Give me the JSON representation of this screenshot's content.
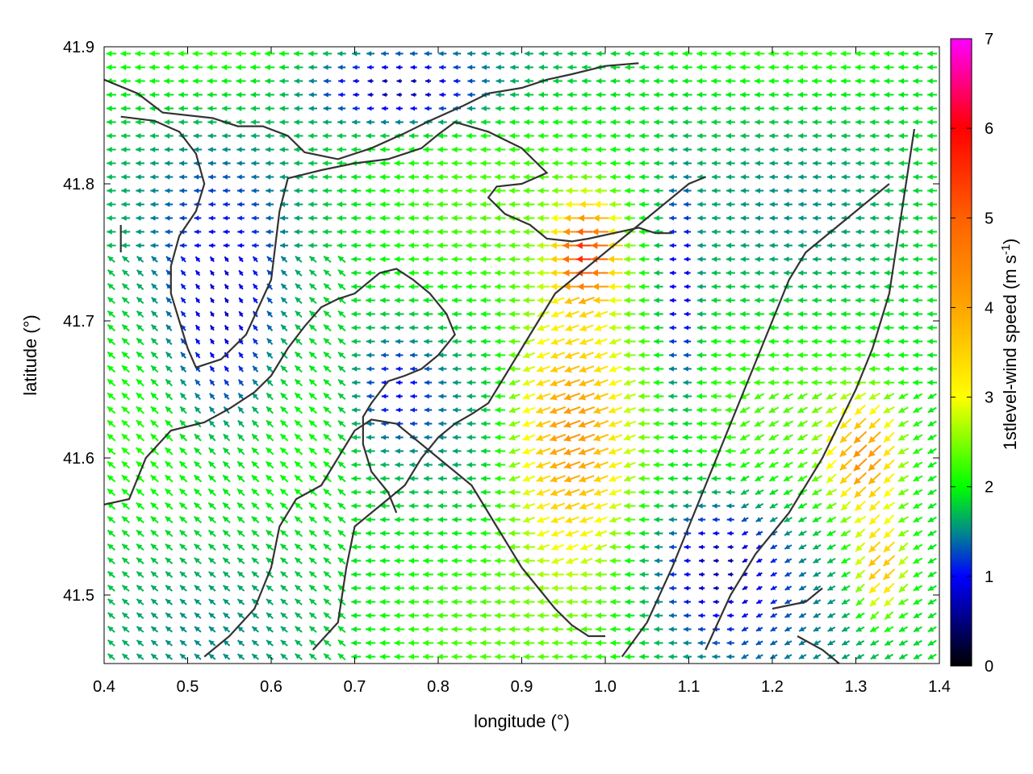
{
  "chart_data": {
    "type": "vector-field",
    "xlabel": "longitude (°)",
    "ylabel": "latitude (°)",
    "colorbar_label": "1stlevel-wind speed (m s",
    "colorbar_label_sup": "-1",
    "colorbar_label_close": ")",
    "xlim": [
      0.4,
      1.4
    ],
    "ylim": [
      41.45,
      41.9
    ],
    "x_ticks": [
      0.4,
      0.5,
      0.6,
      0.7,
      0.8,
      0.9,
      1.0,
      1.1,
      1.2,
      1.3,
      1.4
    ],
    "x_tick_labels": [
      "0.4",
      "0.5",
      "0.6",
      "0.7",
      "0.8",
      "0.9",
      "1.0",
      "1.1",
      "1.2",
      "1.3",
      "1.4"
    ],
    "y_ticks": [
      41.5,
      41.6,
      41.7,
      41.8,
      41.9
    ],
    "y_tick_labels": [
      "41.5",
      "41.6",
      "41.7",
      "41.8",
      "41.9"
    ],
    "colorbar_range": [
      0,
      7
    ],
    "colorbar_ticks": [
      0,
      1,
      2,
      3,
      4,
      5,
      6,
      7
    ],
    "colorbar_tick_labels": [
      "0",
      "1",
      "2",
      "3",
      "4",
      "5",
      "6",
      "7"
    ],
    "colormap": [
      {
        "value": 0,
        "color": "#000000"
      },
      {
        "value": 1,
        "color": "#0000ff"
      },
      {
        "value": 1.5,
        "color": "#008b8b"
      },
      {
        "value": 2,
        "color": "#00ff00"
      },
      {
        "value": 3,
        "color": "#ffff00"
      },
      {
        "value": 4,
        "color": "#ffa500"
      },
      {
        "value": 5,
        "color": "#ff6000"
      },
      {
        "value": 6,
        "color": "#ff0000"
      },
      {
        "value": 7,
        "color": "#ff00ff"
      }
    ],
    "grid": false,
    "contour_color": "#333333",
    "contours": [
      [
        [
          0.4,
          41.876
        ],
        [
          0.44,
          41.866
        ],
        [
          0.47,
          41.852
        ],
        [
          0.53,
          41.848
        ],
        [
          0.56,
          41.842
        ],
        [
          0.59,
          41.842
        ],
        [
          0.62,
          41.835
        ],
        [
          0.64,
          41.823
        ],
        [
          0.68,
          41.818
        ],
        [
          0.72,
          41.826
        ],
        [
          0.76,
          41.837
        ],
        [
          0.79,
          41.846
        ],
        [
          0.83,
          41.857
        ],
        [
          0.86,
          41.866
        ],
        [
          0.9,
          41.87
        ],
        [
          0.93,
          41.876
        ],
        [
          0.96,
          41.88
        ],
        [
          1.0,
          41.886
        ],
        [
          1.04,
          41.888
        ]
      ],
      [
        [
          0.42,
          41.849
        ],
        [
          0.46,
          41.846
        ],
        [
          0.49,
          41.838
        ],
        [
          0.51,
          41.822
        ],
        [
          0.52,
          41.8
        ],
        [
          0.51,
          41.78
        ],
        [
          0.49,
          41.762
        ],
        [
          0.48,
          41.74
        ],
        [
          0.48,
          41.72
        ],
        [
          0.49,
          41.7
        ],
        [
          0.5,
          41.68
        ],
        [
          0.51,
          41.666
        ],
        [
          0.54,
          41.672
        ],
        [
          0.57,
          41.69
        ],
        [
          0.6,
          41.73
        ],
        [
          0.61,
          41.78
        ],
        [
          0.62,
          41.804
        ],
        [
          0.66,
          41.81
        ],
        [
          0.7,
          41.815
        ],
        [
          0.74,
          41.818
        ],
        [
          0.78,
          41.826
        ],
        [
          0.8,
          41.836
        ],
        [
          0.82,
          41.845
        ],
        [
          0.86,
          41.838
        ],
        [
          0.9,
          41.826
        ],
        [
          0.93,
          41.808
        ],
        [
          0.9,
          41.8
        ],
        [
          0.87,
          41.798
        ],
        [
          0.86,
          41.79
        ],
        [
          0.88,
          41.778
        ],
        [
          0.91,
          41.77
        ],
        [
          0.93,
          41.76
        ],
        [
          0.96,
          41.758
        ],
        [
          0.98,
          41.76
        ],
        [
          1.01,
          41.764
        ],
        [
          1.04,
          41.768
        ],
        [
          1.06,
          41.764
        ],
        [
          1.08,
          41.764
        ]
      ],
      [
        [
          0.42,
          41.77
        ],
        [
          0.42,
          41.75
        ]
      ],
      [
        [
          0.4,
          41.566
        ],
        [
          0.43,
          41.57
        ],
        [
          0.45,
          41.6
        ],
        [
          0.48,
          41.62
        ],
        [
          0.52,
          41.626
        ],
        [
          0.55,
          41.636
        ],
        [
          0.58,
          41.648
        ],
        [
          0.6,
          41.66
        ],
        [
          0.62,
          41.68
        ],
        [
          0.64,
          41.696
        ],
        [
          0.66,
          41.71
        ],
        [
          0.68,
          41.716
        ],
        [
          0.7,
          41.72
        ],
        [
          0.73,
          41.735
        ],
        [
          0.75,
          41.738
        ],
        [
          0.77,
          41.73
        ],
        [
          0.79,
          41.72
        ],
        [
          0.81,
          41.705
        ],
        [
          0.82,
          41.69
        ],
        [
          0.8,
          41.675
        ],
        [
          0.78,
          41.665
        ],
        [
          0.76,
          41.66
        ],
        [
          0.74,
          41.656
        ],
        [
          0.72,
          41.64
        ],
        [
          0.71,
          41.63
        ],
        [
          0.71,
          41.61
        ],
        [
          0.72,
          41.59
        ],
        [
          0.74,
          41.575
        ],
        [
          0.75,
          41.56
        ]
      ],
      [
        [
          0.52,
          41.455
        ],
        [
          0.55,
          41.47
        ],
        [
          0.58,
          41.49
        ],
        [
          0.6,
          41.52
        ],
        [
          0.61,
          41.55
        ],
        [
          0.63,
          41.57
        ],
        [
          0.66,
          41.58
        ],
        [
          0.68,
          41.6
        ],
        [
          0.7,
          41.62
        ],
        [
          0.72,
          41.628
        ],
        [
          0.75,
          41.625
        ],
        [
          0.78,
          41.61
        ],
        [
          0.8,
          41.6
        ],
        [
          0.82,
          41.59
        ],
        [
          0.84,
          41.58
        ],
        [
          0.86,
          41.56
        ],
        [
          0.88,
          41.54
        ],
        [
          0.9,
          41.52
        ],
        [
          0.92,
          41.505
        ],
        [
          0.94,
          41.49
        ],
        [
          0.96,
          41.478
        ],
        [
          0.98,
          41.47
        ],
        [
          1.0,
          41.47
        ]
      ],
      [
        [
          0.65,
          41.46
        ],
        [
          0.68,
          41.48
        ],
        [
          0.69,
          41.52
        ],
        [
          0.7,
          41.55
        ],
        [
          0.72,
          41.56
        ],
        [
          0.74,
          41.57
        ],
        [
          0.76,
          41.58
        ],
        [
          0.78,
          41.6
        ],
        [
          0.8,
          41.615
        ],
        [
          0.82,
          41.625
        ],
        [
          0.84,
          41.632
        ],
        [
          0.86,
          41.64
        ],
        [
          0.88,
          41.66
        ],
        [
          0.9,
          41.68
        ],
        [
          0.92,
          41.7
        ],
        [
          0.94,
          41.72
        ],
        [
          0.96,
          41.73
        ],
        [
          0.98,
          41.74
        ],
        [
          1.0,
          41.75
        ],
        [
          1.02,
          41.76
        ],
        [
          1.04,
          41.77
        ],
        [
          1.06,
          41.78
        ],
        [
          1.08,
          41.79
        ],
        [
          1.1,
          41.8
        ],
        [
          1.12,
          41.805
        ]
      ],
      [
        [
          1.02,
          41.455
        ],
        [
          1.05,
          41.48
        ],
        [
          1.08,
          41.52
        ],
        [
          1.1,
          41.55
        ],
        [
          1.12,
          41.58
        ],
        [
          1.14,
          41.61
        ],
        [
          1.16,
          41.64
        ],
        [
          1.18,
          41.67
        ],
        [
          1.2,
          41.7
        ],
        [
          1.22,
          41.73
        ],
        [
          1.24,
          41.75
        ],
        [
          1.26,
          41.76
        ],
        [
          1.28,
          41.77
        ],
        [
          1.3,
          41.78
        ],
        [
          1.32,
          41.79
        ],
        [
          1.34,
          41.8
        ]
      ],
      [
        [
          1.12,
          41.46
        ],
        [
          1.15,
          41.5
        ],
        [
          1.18,
          41.53
        ],
        [
          1.22,
          41.56
        ],
        [
          1.26,
          41.6
        ],
        [
          1.3,
          41.65
        ],
        [
          1.32,
          41.68
        ],
        [
          1.34,
          41.72
        ],
        [
          1.35,
          41.76
        ],
        [
          1.36,
          41.8
        ],
        [
          1.37,
          41.84
        ]
      ],
      [
        [
          1.2,
          41.49
        ],
        [
          1.24,
          41.495
        ],
        [
          1.26,
          41.505
        ]
      ],
      [
        [
          1.23,
          41.47
        ],
        [
          1.26,
          41.46
        ],
        [
          1.28,
          41.45
        ]
      ]
    ]
  }
}
